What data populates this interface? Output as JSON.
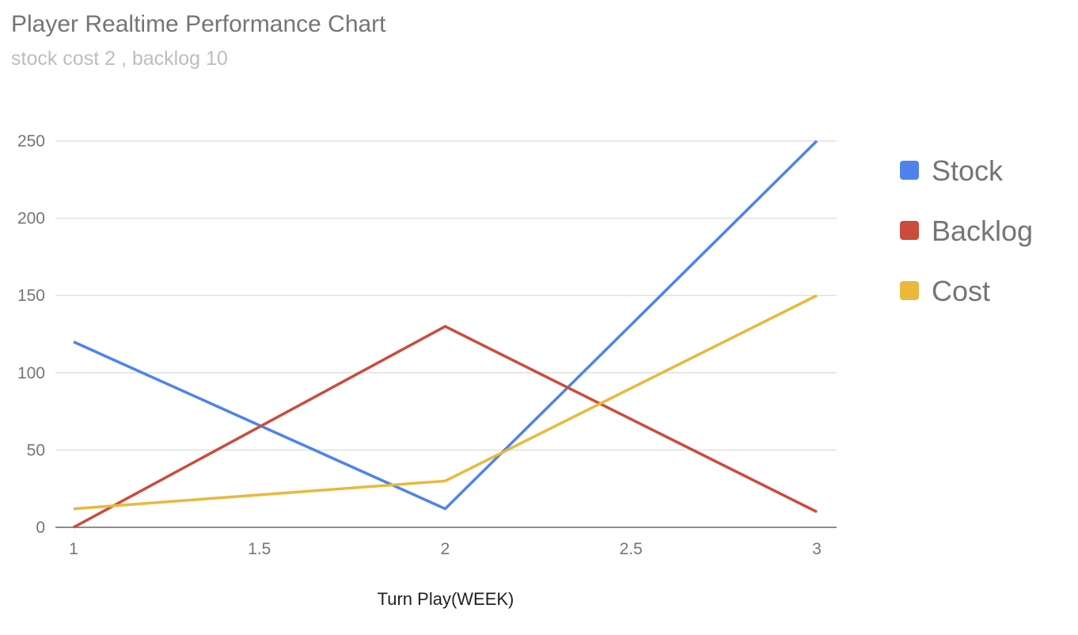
{
  "chart_data": {
    "type": "line",
    "title": "Player Realtime Performance Chart",
    "subtitle": "stock cost 2 , backlog 10",
    "xlabel": "Turn Play(WEEK)",
    "ylabel": "",
    "x": [
      1,
      2,
      3
    ],
    "xlim": [
      1,
      3
    ],
    "ylim": [
      0,
      250
    ],
    "x_ticks": [
      "1",
      "1.5",
      "2",
      "2.5",
      "3"
    ],
    "y_ticks": [
      "0",
      "50",
      "100",
      "150",
      "200",
      "250"
    ],
    "grid": true,
    "legend_position": "right",
    "series": [
      {
        "name": "Stock",
        "color": "#4e83ec",
        "values": [
          120,
          12,
          250
        ]
      },
      {
        "name": "Backlog",
        "color": "#cc4b3b",
        "values": [
          0,
          130,
          10
        ]
      },
      {
        "name": "Cost",
        "color": "#eab83a",
        "values": [
          12,
          30,
          150
        ]
      }
    ]
  }
}
